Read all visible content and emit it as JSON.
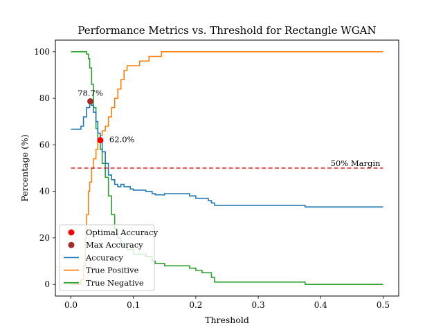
{
  "chart_data": {
    "type": "line",
    "title": "Performance Metrics vs. Threshold for Rectangle WGAN",
    "xlabel": "Threshold",
    "ylabel": "Percentage (%)",
    "xlim": [
      -0.025,
      0.525
    ],
    "ylim": [
      -5,
      105
    ],
    "xticks": [
      0.0,
      0.1,
      0.2,
      0.3,
      0.4,
      0.5
    ],
    "xtick_labels": [
      "0.0",
      "0.1",
      "0.2",
      "0.3",
      "0.4",
      "0.5"
    ],
    "yticks": [
      0,
      20,
      40,
      60,
      80,
      100
    ],
    "ytick_labels": [
      "0",
      "20",
      "40",
      "60",
      "80",
      "100"
    ],
    "grid": false,
    "legend_position": "lower-left",
    "colors": {
      "accuracy": "#1f77b4",
      "true_positive": "#ff7f0e",
      "true_negative": "#2ca02c",
      "margin": "#d62728",
      "optimal": "#ff0000",
      "max": "#a52a2a"
    },
    "series": [
      {
        "name": "Accuracy",
        "color": "#1f77b4",
        "x": [
          0.0,
          0.012,
          0.016,
          0.02,
          0.025,
          0.03,
          0.033,
          0.036,
          0.04,
          0.043,
          0.047,
          0.05,
          0.055,
          0.06,
          0.065,
          0.07,
          0.075,
          0.08,
          0.085,
          0.09,
          0.095,
          0.1,
          0.11,
          0.12,
          0.13,
          0.135,
          0.145,
          0.15,
          0.16,
          0.18,
          0.19,
          0.2,
          0.21,
          0.22,
          0.225,
          0.23,
          0.3,
          0.37,
          0.375,
          0.5
        ],
        "y": [
          66.7,
          66.7,
          68,
          72,
          76,
          78.7,
          77,
          74,
          70,
          65,
          62,
          57,
          52,
          47,
          45,
          43,
          42,
          43,
          42,
          42,
          41,
          40.5,
          40.5,
          40,
          39,
          38.5,
          38.5,
          39,
          39,
          39,
          38,
          37,
          37,
          36,
          35,
          34,
          34,
          34,
          33.3,
          33.3
        ]
      },
      {
        "name": "True Positive",
        "color": "#ff7f0e",
        "x": [
          0.0,
          0.012,
          0.016,
          0.02,
          0.023,
          0.025,
          0.028,
          0.03,
          0.033,
          0.036,
          0.04,
          0.043,
          0.047,
          0.05,
          0.055,
          0.06,
          0.065,
          0.07,
          0.075,
          0.08,
          0.085,
          0.09,
          0.1,
          0.11,
          0.125,
          0.135,
          0.145,
          0.15,
          0.2,
          0.3,
          0.4,
          0.5
        ],
        "y": [
          0,
          0,
          2,
          8,
          20,
          30,
          40,
          44,
          50,
          54,
          58,
          62,
          64,
          66,
          68,
          72,
          76,
          80,
          84,
          88,
          92,
          94,
          94,
          96,
          98,
          98,
          100,
          100,
          100,
          100,
          100,
          100
        ]
      },
      {
        "name": "True Negative",
        "color": "#2ca02c",
        "x": [
          0.0,
          0.02,
          0.025,
          0.028,
          0.03,
          0.033,
          0.036,
          0.04,
          0.043,
          0.047,
          0.05,
          0.055,
          0.06,
          0.065,
          0.07,
          0.075,
          0.08,
          0.09,
          0.1,
          0.11,
          0.12,
          0.13,
          0.135,
          0.145,
          0.15,
          0.16,
          0.18,
          0.19,
          0.2,
          0.21,
          0.22,
          0.225,
          0.23,
          0.3,
          0.37,
          0.375,
          0.5
        ],
        "y": [
          100,
          100,
          99,
          97,
          93,
          86,
          76,
          67,
          62,
          58,
          52,
          46,
          38,
          30,
          24,
          20,
          17,
          15,
          13,
          13,
          12,
          10,
          9,
          9,
          8,
          8,
          8,
          7,
          6,
          5,
          5,
          3,
          1,
          1,
          1,
          0,
          0
        ]
      }
    ],
    "margin_line": {
      "y": 50,
      "label": "50% Margin"
    },
    "points": [
      {
        "name": "Optimal Accuracy",
        "x": 0.047,
        "y": 62.0,
        "label": "62.0%",
        "color": "#ff0000"
      },
      {
        "name": "Max Accuracy",
        "x": 0.031,
        "y": 78.7,
        "label": "78.7%",
        "color": "#a52a2a"
      }
    ],
    "legend": [
      "Optimal Accuracy",
      "Max Accuracy",
      "Accuracy",
      "True Positive",
      "True Negative"
    ]
  }
}
